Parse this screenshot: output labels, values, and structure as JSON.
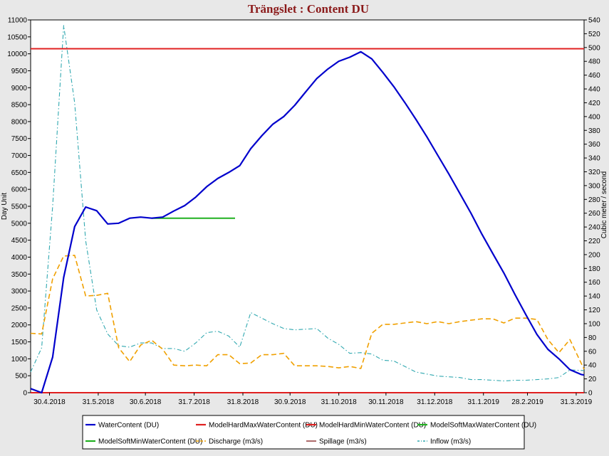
{
  "chart_data": {
    "type": "line",
    "title": "Trängslet : Content DU",
    "ylabel_left": "Day Unit",
    "ylabel_right": "Cubic meter / second",
    "ylim_left": [
      0,
      11000
    ],
    "ylim_right": [
      0,
      540
    ],
    "xlim": [
      "2018-04-18",
      "2019-04-05"
    ],
    "x_ticks": [
      {
        "date": "2018-04-30",
        "label": "30.4.2018"
      },
      {
        "date": "2018-05-31",
        "label": "31.5.2018"
      },
      {
        "date": "2018-06-30",
        "label": "30.6.2018"
      },
      {
        "date": "2018-07-31",
        "label": "31.7.2018"
      },
      {
        "date": "2018-08-31",
        "label": "31.8.2018"
      },
      {
        "date": "2018-09-30",
        "label": "30.9.2018"
      },
      {
        "date": "2018-10-31",
        "label": "31.10.2018"
      },
      {
        "date": "2018-11-30",
        "label": "30.11.2018"
      },
      {
        "date": "2018-12-31",
        "label": "31.12.2018"
      },
      {
        "date": "2019-01-31",
        "label": "31.1.2019"
      },
      {
        "date": "2019-02-28",
        "label": "28.2.2019"
      },
      {
        "date": "2019-03-31",
        "label": "31.3.2019"
      }
    ],
    "y_ticks_left": [
      0,
      500,
      1000,
      1500,
      2000,
      2500,
      3000,
      3500,
      4000,
      4500,
      5000,
      5500,
      6000,
      6500,
      7000,
      7500,
      8000,
      8500,
      9000,
      9500,
      10000,
      10500,
      11000
    ],
    "y_ticks_right": [
      0,
      20,
      40,
      60,
      80,
      100,
      120,
      140,
      160,
      180,
      200,
      220,
      240,
      260,
      280,
      300,
      320,
      340,
      360,
      380,
      400,
      420,
      440,
      460,
      480,
      500,
      520,
      540
    ],
    "grid": false,
    "legend_position": "bottom",
    "series": [
      {
        "name": "WaterContent (DU)",
        "axis": "left",
        "color": "#0000cc",
        "style": "solid",
        "width": 2.2,
        "points": [
          [
            "2018-04-18",
            120
          ],
          [
            "2018-04-25",
            0
          ],
          [
            "2018-05-02",
            1050
          ],
          [
            "2018-05-09",
            3400
          ],
          [
            "2018-05-16",
            4900
          ],
          [
            "2018-05-23",
            5480
          ],
          [
            "2018-05-30",
            5370
          ],
          [
            "2018-06-06",
            4980
          ],
          [
            "2018-06-13",
            5000
          ],
          [
            "2018-06-20",
            5150
          ],
          [
            "2018-06-27",
            5180
          ],
          [
            "2018-07-04",
            5150
          ],
          [
            "2018-07-11",
            5180
          ],
          [
            "2018-07-18",
            5360
          ],
          [
            "2018-07-25",
            5520
          ],
          [
            "2018-08-01",
            5770
          ],
          [
            "2018-08-08",
            6080
          ],
          [
            "2018-08-15",
            6320
          ],
          [
            "2018-08-22",
            6500
          ],
          [
            "2018-08-29",
            6700
          ],
          [
            "2018-09-05",
            7200
          ],
          [
            "2018-09-12",
            7580
          ],
          [
            "2018-09-19",
            7920
          ],
          [
            "2018-09-26",
            8150
          ],
          [
            "2018-10-03",
            8480
          ],
          [
            "2018-10-10",
            8880
          ],
          [
            "2018-10-17",
            9270
          ],
          [
            "2018-10-24",
            9550
          ],
          [
            "2018-10-31",
            9780
          ],
          [
            "2018-11-07",
            9900
          ],
          [
            "2018-11-14",
            10060
          ],
          [
            "2018-11-21",
            9850
          ],
          [
            "2018-11-28",
            9450
          ],
          [
            "2018-12-05",
            9030
          ],
          [
            "2018-12-12",
            8560
          ],
          [
            "2018-12-19",
            8070
          ],
          [
            "2018-12-26",
            7550
          ],
          [
            "2019-01-02",
            7000
          ],
          [
            "2019-01-09",
            6450
          ],
          [
            "2019-01-16",
            5880
          ],
          [
            "2019-01-23",
            5300
          ],
          [
            "2019-01-30",
            4680
          ],
          [
            "2019-02-06",
            4100
          ],
          [
            "2019-02-13",
            3530
          ],
          [
            "2019-02-20",
            2900
          ],
          [
            "2019-02-27",
            2300
          ],
          [
            "2019-03-06",
            1720
          ],
          [
            "2019-03-13",
            1280
          ],
          [
            "2019-03-20",
            1000
          ],
          [
            "2019-03-27",
            680
          ],
          [
            "2019-04-03",
            540
          ],
          [
            "2019-04-05",
            520
          ]
        ]
      },
      {
        "name": "ModelHardMaxWaterContent (DU)",
        "axis": "left",
        "color": "#e02020",
        "style": "solid",
        "width": 2,
        "points": [
          [
            "2018-04-18",
            10150
          ],
          [
            "2019-04-05",
            10150
          ]
        ]
      },
      {
        "name": "ModelHardMinWaterContent (DU)",
        "axis": "left",
        "color": "#e02020",
        "style": "solid",
        "width": 2,
        "points": [
          [
            "2018-04-18",
            0
          ],
          [
            "2019-04-05",
            0
          ]
        ]
      },
      {
        "name": "ModelSoftMaxWaterContent (DU)",
        "axis": "left",
        "color": "#20b020",
        "style": "solid",
        "width": 2,
        "points": [
          [
            "2018-07-04",
            5150
          ],
          [
            "2018-08-26",
            5150
          ]
        ]
      },
      {
        "name": "ModelSoftMinWaterContent (DU)",
        "axis": "left",
        "color": "#20b020",
        "style": "solid",
        "width": 2,
        "points": []
      },
      {
        "name": "Discharge (m3/s)",
        "axis": "right",
        "color": "#f0a000",
        "style": "dashed",
        "width": 1.6,
        "points": [
          [
            "2018-04-18",
            86
          ],
          [
            "2018-04-25",
            85
          ],
          [
            "2018-05-02",
            165
          ],
          [
            "2018-05-09",
            198
          ],
          [
            "2018-05-16",
            199
          ],
          [
            "2018-05-23",
            140
          ],
          [
            "2018-05-30",
            141
          ],
          [
            "2018-06-06",
            144
          ],
          [
            "2018-06-13",
            65
          ],
          [
            "2018-06-20",
            45
          ],
          [
            "2018-06-27",
            69
          ],
          [
            "2018-07-04",
            76
          ],
          [
            "2018-07-11",
            63
          ],
          [
            "2018-07-18",
            40
          ],
          [
            "2018-07-25",
            39
          ],
          [
            "2018-08-01",
            40
          ],
          [
            "2018-08-08",
            39
          ],
          [
            "2018-08-15",
            55
          ],
          [
            "2018-08-22",
            55
          ],
          [
            "2018-08-29",
            42
          ],
          [
            "2018-09-05",
            43
          ],
          [
            "2018-09-12",
            55
          ],
          [
            "2018-09-19",
            55
          ],
          [
            "2018-09-26",
            57
          ],
          [
            "2018-10-03",
            39
          ],
          [
            "2018-10-10",
            39
          ],
          [
            "2018-10-17",
            39
          ],
          [
            "2018-10-24",
            38
          ],
          [
            "2018-10-31",
            36
          ],
          [
            "2018-11-07",
            38
          ],
          [
            "2018-11-14",
            35
          ],
          [
            "2018-11-21",
            86
          ],
          [
            "2018-11-28",
            99
          ],
          [
            "2018-12-05",
            99
          ],
          [
            "2018-12-12",
            101
          ],
          [
            "2018-12-19",
            103
          ],
          [
            "2018-12-26",
            100
          ],
          [
            "2019-01-02",
            103
          ],
          [
            "2019-01-09",
            100
          ],
          [
            "2019-01-16",
            103
          ],
          [
            "2019-01-23",
            105
          ],
          [
            "2019-01-30",
            107
          ],
          [
            "2019-02-06",
            107
          ],
          [
            "2019-02-13",
            101
          ],
          [
            "2019-02-20",
            108
          ],
          [
            "2019-02-27",
            108
          ],
          [
            "2019-03-06",
            106
          ],
          [
            "2019-03-13",
            77
          ],
          [
            "2019-03-20",
            58
          ],
          [
            "2019-03-27",
            77
          ],
          [
            "2019-04-05",
            34
          ]
        ]
      },
      {
        "name": "Spillage (m3/s)",
        "axis": "right",
        "color": "#b07070",
        "style": "solid",
        "width": 1,
        "points": []
      },
      {
        "name": "Inflow (m3/s)",
        "axis": "right",
        "color": "#30a8b0",
        "style": "dash-dot",
        "width": 1.1,
        "points": [
          [
            "2018-04-18",
            30
          ],
          [
            "2018-04-25",
            65
          ],
          [
            "2018-05-02",
            270
          ],
          [
            "2018-05-09",
            532
          ],
          [
            "2018-05-16",
            420
          ],
          [
            "2018-05-23",
            220
          ],
          [
            "2018-05-30",
            120
          ],
          [
            "2018-06-06",
            85
          ],
          [
            "2018-06-13",
            68
          ],
          [
            "2018-06-20",
            66
          ],
          [
            "2018-06-27",
            72
          ],
          [
            "2018-07-04",
            72
          ],
          [
            "2018-07-11",
            64
          ],
          [
            "2018-07-18",
            64
          ],
          [
            "2018-07-25",
            60
          ],
          [
            "2018-08-01",
            72
          ],
          [
            "2018-08-08",
            87
          ],
          [
            "2018-08-15",
            89
          ],
          [
            "2018-08-22",
            82
          ],
          [
            "2018-08-29",
            66
          ],
          [
            "2018-09-05",
            116
          ],
          [
            "2018-09-12",
            108
          ],
          [
            "2018-09-19",
            100
          ],
          [
            "2018-09-26",
            93
          ],
          [
            "2018-10-03",
            91
          ],
          [
            "2018-10-10",
            92
          ],
          [
            "2018-10-17",
            93
          ],
          [
            "2018-10-24",
            79
          ],
          [
            "2018-10-31",
            70
          ],
          [
            "2018-11-07",
            57
          ],
          [
            "2018-11-14",
            58
          ],
          [
            "2018-11-21",
            56
          ],
          [
            "2018-11-28",
            47
          ],
          [
            "2018-12-05",
            46
          ],
          [
            "2018-12-12",
            38
          ],
          [
            "2018-12-19",
            30
          ],
          [
            "2018-12-26",
            27
          ],
          [
            "2019-01-02",
            24
          ],
          [
            "2019-01-09",
            23
          ],
          [
            "2019-01-16",
            22
          ],
          [
            "2019-01-23",
            19
          ],
          [
            "2019-01-30",
            19
          ],
          [
            "2019-02-06",
            18
          ],
          [
            "2019-02-13",
            17
          ],
          [
            "2019-02-20",
            18
          ],
          [
            "2019-02-27",
            18
          ],
          [
            "2019-03-06",
            19
          ],
          [
            "2019-03-13",
            20
          ],
          [
            "2019-03-20",
            22
          ],
          [
            "2019-03-27",
            33
          ],
          [
            "2019-04-05",
            32
          ]
        ]
      }
    ]
  }
}
